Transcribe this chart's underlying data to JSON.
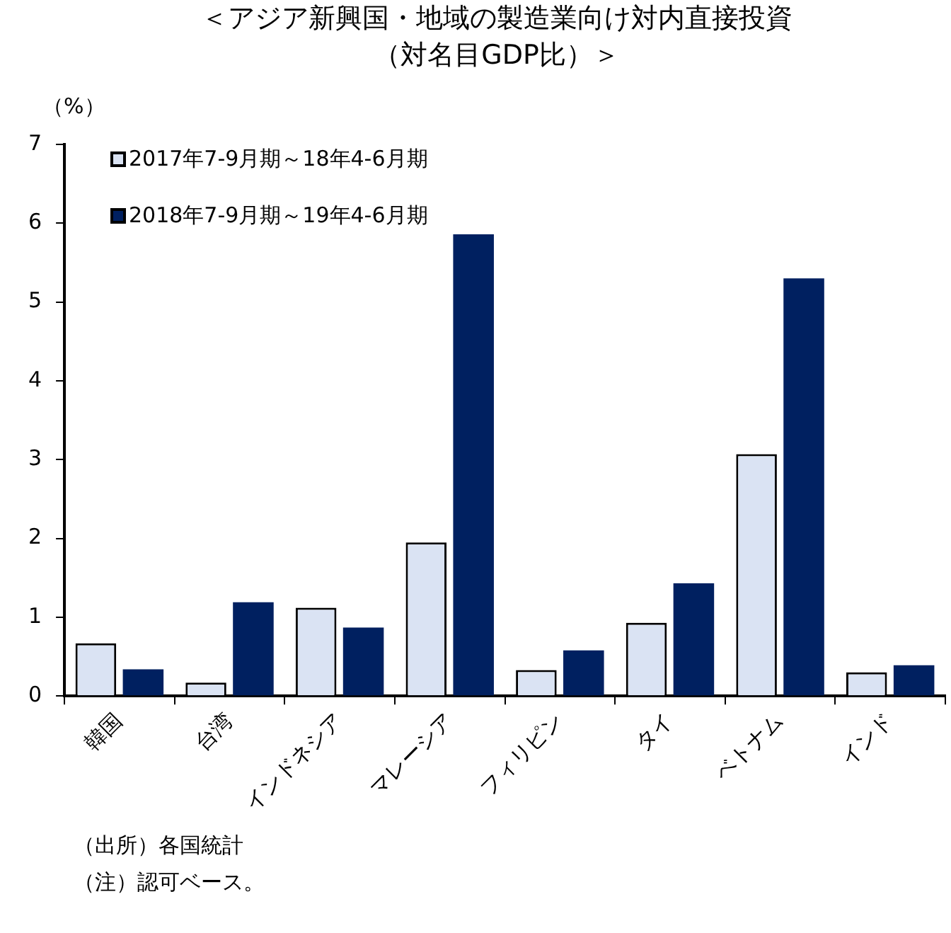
{
  "chart_data": {
    "type": "bar",
    "title": "＜アジア新興国・地域の製造業向け対内直接投資",
    "subtitle": "（対名目GDP比）＞",
    "ylabel": "（%）",
    "categories": [
      "韓国",
      "台湾",
      "インドネシア",
      "マレーシア",
      "フィリピン",
      "タイ",
      "ベトナム",
      "インド"
    ],
    "series": [
      {
        "name": "2017年7-9月期～18年4-6月期",
        "color": "#dae3f3",
        "values": [
          0.67,
          0.17,
          1.12,
          1.95,
          0.33,
          0.93,
          3.07,
          0.3
        ]
      },
      {
        "name": "2018年7-9月期～19年4-6月期",
        "color": "#002060",
        "values": [
          0.34,
          1.19,
          0.87,
          5.86,
          0.58,
          1.43,
          5.3,
          0.39
        ]
      }
    ],
    "ylim": [
      0,
      7
    ],
    "yticks": [
      0,
      1,
      2,
      3,
      4,
      5,
      6,
      7
    ],
    "grid": false,
    "legend": "top left",
    "annotations": [
      "（出所）各国統計",
      "（注）認可ベース。"
    ]
  }
}
